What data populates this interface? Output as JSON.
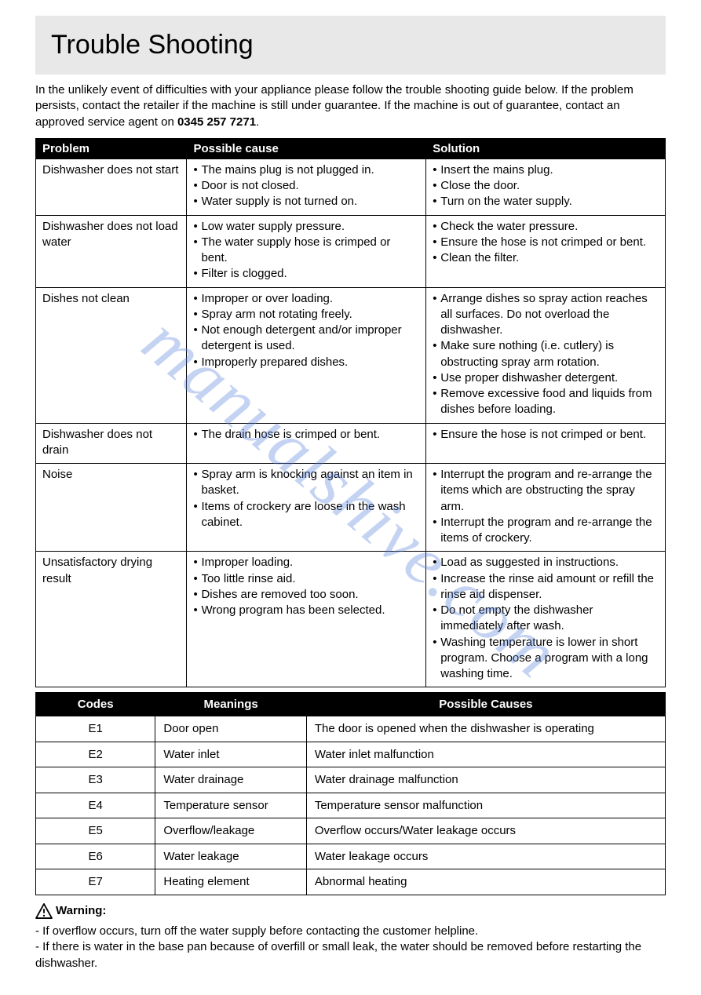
{
  "title": "Trouble Shooting",
  "intro_pre": "In the unlikely event of difficulties with your appliance please follow the trouble shooting guide below.  If the problem persists, contact the retailer if the machine is still under guarantee.  If the machine is out of guarantee, contact an approved service agent on ",
  "intro_bold": "0345 257 7271",
  "intro_post": ".",
  "trouble_headers": {
    "c1": "Problem",
    "c2": "Possible cause",
    "c3": "Solution"
  },
  "trouble_rows": [
    {
      "problem": "Dishwasher does not start",
      "causes": [
        "The mains plug is not plugged in.",
        "Door is not closed.",
        "Water supply is not turned on."
      ],
      "solutions": [
        "Insert the mains plug.",
        "Close the door.",
        "Turn on the water supply."
      ]
    },
    {
      "problem": "Dishwasher does not load water",
      "causes": [
        "Low water supply pressure.",
        "The water supply hose is crimped or bent.",
        "Filter is clogged."
      ],
      "solutions": [
        "Check the water pressure.",
        "Ensure the hose is not crimped or bent.",
        "Clean the filter."
      ]
    },
    {
      "problem": "Dishes not clean",
      "causes": [
        "Improper or over loading.",
        "Spray arm not rotating freely.",
        "Not enough detergent and/or improper detergent is used.",
        "Improperly prepared dishes."
      ],
      "solutions": [
        "Arrange dishes so spray action reaches all surfaces. Do not overload the dishwasher.",
        "Make sure nothing (i.e. cutlery) is obstructing spray arm rotation.",
        "Use proper dishwasher detergent.",
        "Remove excessive food and liquids from dishes before loading."
      ]
    },
    {
      "problem": "Dishwasher does not drain",
      "causes": [
        "The drain hose is crimped or bent."
      ],
      "solutions": [
        "Ensure the hose is not crimped or bent."
      ]
    },
    {
      "problem": "Noise",
      "causes": [
        "Spray arm is knocking against an item in basket.",
        "Items of crockery are loose in the wash cabinet."
      ],
      "solutions": [
        "Interrupt the program and re-arrange the items which are obstructing the spray arm.",
        "Interrupt the program and re-arrange the items of crockery."
      ]
    },
    {
      "problem": "Unsatisfactory drying result",
      "causes": [
        "Improper loading.",
        "Too little rinse aid.",
        "Dishes are removed too soon.",
        "Wrong program has been selected."
      ],
      "solutions": [
        "Load as suggested in instructions.",
        "Increase the rinse aid amount or refill the rinse aid dispenser.",
        "Do not empty the dishwasher immediately after wash.",
        "Washing temperature is lower in short program.  Choose a program with a long washing time."
      ]
    }
  ],
  "codes_headers": {
    "c1": "Codes",
    "c2": "Meanings",
    "c3": "Possible Causes"
  },
  "codes_rows": [
    {
      "code": "E1",
      "meaning": "Door open",
      "cause": "The door is opened when the dishwasher is operating"
    },
    {
      "code": "E2",
      "meaning": "Water inlet",
      "cause": "Water inlet malfunction"
    },
    {
      "code": "E3",
      "meaning": "Water drainage",
      "cause": "Water drainage malfunction"
    },
    {
      "code": "E4",
      "meaning": "Temperature sensor",
      "cause": "Temperature sensor malfunction"
    },
    {
      "code": "E5",
      "meaning": "Overflow/leakage",
      "cause": "Overflow occurs/Water leakage occurs"
    },
    {
      "code": "E6",
      "meaning": "Water leakage",
      "cause": "Water leakage occurs"
    },
    {
      "code": "E7",
      "meaning": "Heating element",
      "cause": "Abnormal heating"
    }
  ],
  "warning_label": "Warning:",
  "warning_lines": [
    "- If overflow occurs, turn off the water supply before contacting the customer helpline.",
    "- If there is water in the base pan because of overfill or small leak, the water should be removed before restarting the dishwasher."
  ],
  "watermark": "manualshive.com"
}
